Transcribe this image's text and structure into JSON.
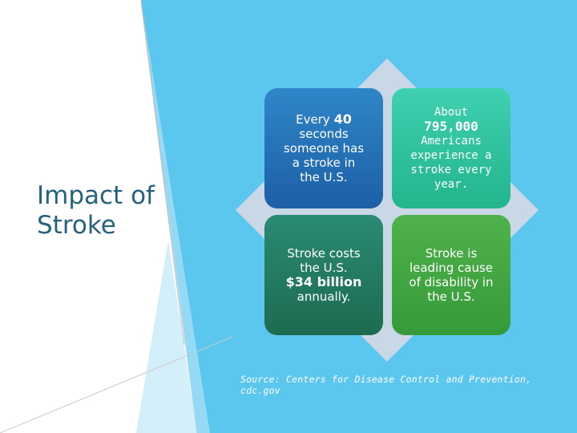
{
  "slide": {
    "title_lines": [
      "Impact of",
      "Stroke"
    ],
    "tiles": [
      {
        "lines": [
          "Every ",
          "40",
          "seconds",
          "someone has",
          "a stroke in",
          "the U.S."
        ]
      },
      {
        "lines": [
          "About",
          "795,000",
          "Americans",
          "experience a",
          "stroke every",
          "year."
        ]
      },
      {
        "lines": [
          "Stroke costs",
          "the U.S.",
          "$34 billion",
          "annually."
        ]
      },
      {
        "lines": [
          "Stroke is",
          "leading cause",
          "of disability in",
          "the U.S."
        ]
      }
    ],
    "source": "Source: Centers for Disease Control and Prevention, cdc.gov"
  },
  "colors": {
    "background": "#5bc6ee",
    "title": "#25627d",
    "diamond": "#c9d7e6",
    "tile_blue": "#1d5fa6",
    "tile_teal": "#23b58d",
    "tile_dark_green": "#1d6b50",
    "tile_green": "#369a3a"
  }
}
